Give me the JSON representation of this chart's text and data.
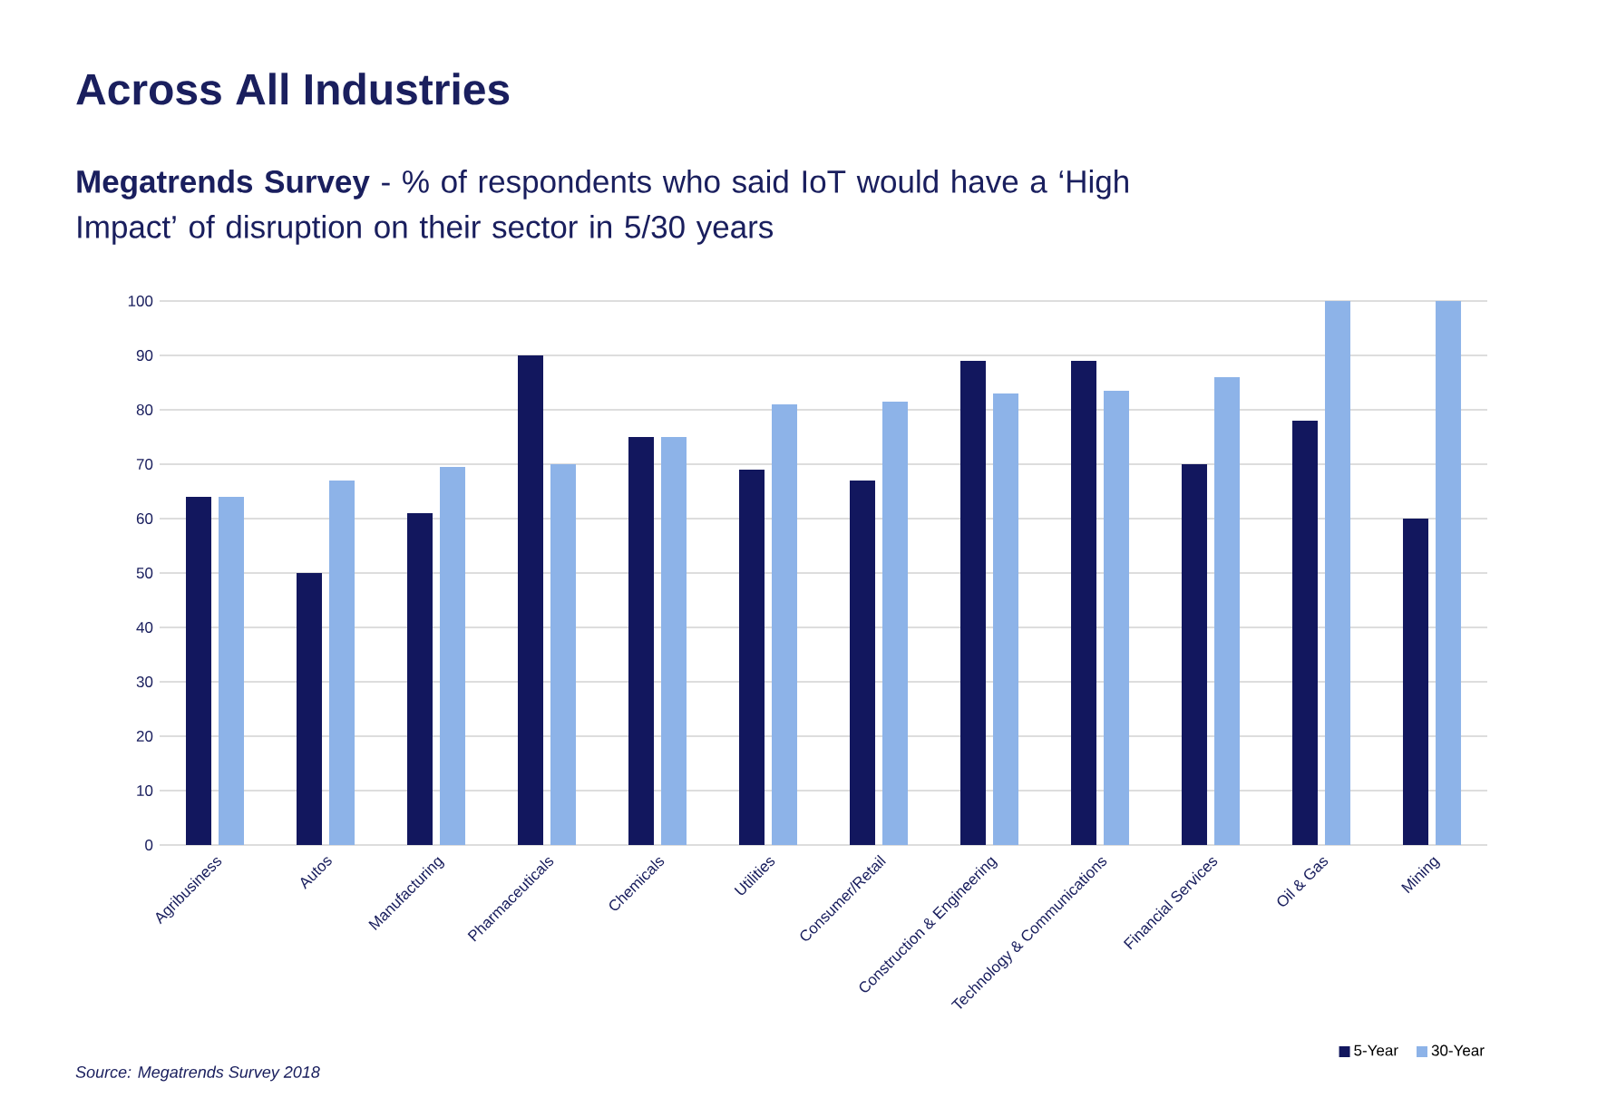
{
  "chart_data": {
    "type": "bar",
    "title": "Across All Industries",
    "subtitle": "**Megatrends Survey** - % of respondents who said IoT would have a ‘High Impact’ of disruption on their sector in 5/30 years",
    "categories": [
      "Agribusiness",
      "Autos",
      "Manufacturing",
      "Pharmaceuticals",
      "Chemicals",
      "Utilities",
      "Consumer/Retail",
      "Construction & Engineering",
      "Technology & Communications",
      "Financial Services",
      "Oil & Gas",
      "Mining"
    ],
    "series": [
      {
        "name": "5-Year",
        "color": "#12175e",
        "values": [
          64,
          50,
          61,
          90,
          75,
          69,
          67,
          89,
          89,
          70,
          78,
          60
        ]
      },
      {
        "name": "30-Year",
        "color": "#8db3e8",
        "values": [
          64,
          67,
          69.5,
          70,
          75,
          81,
          81.5,
          83,
          83.5,
          86,
          100,
          100
        ]
      }
    ],
    "ylim": [
      0,
      100
    ],
    "yticks": [
      0,
      10,
      20,
      30,
      40,
      50,
      60,
      70,
      80,
      90,
      100
    ],
    "grid": "y",
    "legend": "bottom right",
    "annotations": [
      "Source: Megatrends Survey 2018"
    ]
  }
}
